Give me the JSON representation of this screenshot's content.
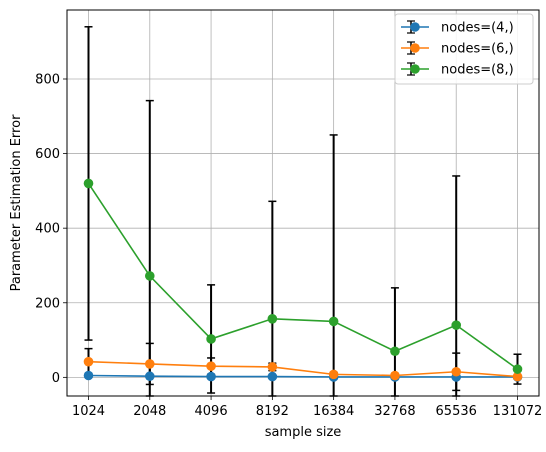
{
  "chart_data": {
    "type": "line",
    "title": "",
    "xlabel": "sample size",
    "ylabel": "Parameter Estimation Error",
    "categories": [
      "1024",
      "2048",
      "4096",
      "8192",
      "16384",
      "32768",
      "65536",
      "131072"
    ],
    "ylim": [
      -50,
      985
    ],
    "yticks": [
      0,
      200,
      400,
      600,
      800
    ],
    "grid": true,
    "legend": "top-right",
    "series": [
      {
        "name": "nodes=(4,)",
        "color": "#1f77b4",
        "values": [
          5,
          3,
          2,
          2,
          1,
          1,
          1,
          1
        ],
        "err": [
          3,
          2,
          2,
          1,
          1,
          1,
          1,
          1
        ]
      },
      {
        "name": "nodes=(6,)",
        "color": "#ff7f0e",
        "values": [
          42,
          36,
          30,
          28,
          8,
          5,
          15,
          2
        ],
        "err": [
          35,
          55,
          22,
          10,
          5,
          4,
          50,
          2
        ]
      },
      {
        "name": "nodes=(8,)",
        "color": "#2ca02c",
        "values": [
          520,
          272,
          103,
          157,
          150,
          70,
          140,
          22
        ],
        "err": [
          420,
          470,
          145,
          315,
          500,
          170,
          400,
          40
        ]
      }
    ]
  }
}
